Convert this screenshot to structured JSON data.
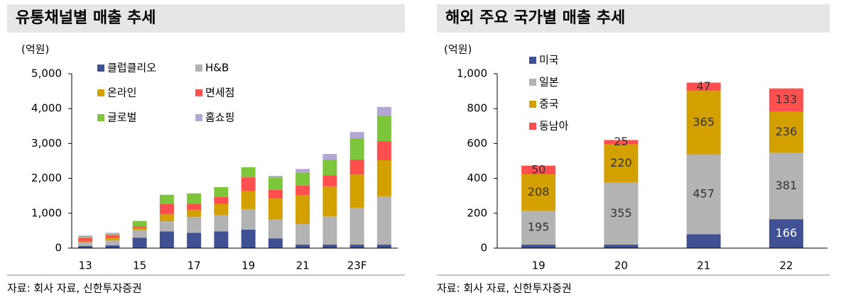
{
  "chart_data": [
    {
      "type": "stacked-bar",
      "title": "유통채널별 매출 추세",
      "unit": "(억원)",
      "source": "자료: 회사 자료, 신한투자증권",
      "categories": [
        "13",
        null,
        "15",
        null,
        "17",
        null,
        "19",
        null,
        "21",
        null,
        "23F",
        null
      ],
      "series": [
        {
          "name": "클럽클리오",
          "color": "#3f5193",
          "values": [
            60,
            80,
            300,
            480,
            440,
            480,
            530,
            280,
            100,
            100,
            100,
            100
          ]
        },
        {
          "name": "H&B",
          "color": "#b3b3b3",
          "values": [
            100,
            150,
            220,
            290,
            450,
            460,
            590,
            540,
            590,
            810,
            1060,
            1380
          ]
        },
        {
          "name": "온라인",
          "color": "#d4a000",
          "values": [
            30,
            60,
            60,
            200,
            200,
            330,
            510,
            600,
            830,
            860,
            950,
            1040
          ]
        },
        {
          "name": "면세점",
          "color": "#ff4f4f",
          "values": [
            100,
            80,
            40,
            290,
            180,
            200,
            400,
            250,
            270,
            320,
            430,
            550
          ]
        },
        {
          "name": "글로벌",
          "color": "#7dc63c",
          "values": [
            30,
            30,
            160,
            270,
            300,
            280,
            290,
            360,
            380,
            450,
            610,
            730
          ]
        },
        {
          "name": "홈쇼핑",
          "color": "#b4a7d6",
          "values": [
            40,
            40,
            0,
            0,
            0,
            0,
            0,
            40,
            100,
            160,
            180,
            250
          ]
        }
      ],
      "ylim": [
        0,
        5000
      ],
      "yticks": [
        0,
        {
          "value": 1000,
          "label": "1,000"
        },
        {
          "value": 2000,
          "label": "2,000"
        },
        {
          "value": 3000,
          "label": "3,000"
        },
        {
          "value": 4000,
          "label": "4,000"
        },
        {
          "value": 5000,
          "label": "5,000"
        }
      ],
      "legend": "top-left"
    },
    {
      "type": "stacked-bar",
      "title": "해외 주요 국가별 매출 추세",
      "unit": "(억원)",
      "source": "자료: 회사 자료, 신한투자증권",
      "categories": [
        "19",
        "20",
        "21",
        "22"
      ],
      "series": [
        {
          "name": "미국",
          "color": "#3f5193",
          "values": [
            20,
            20,
            80,
            166
          ],
          "value_labels": [
            null,
            null,
            null,
            "166"
          ]
        },
        {
          "name": "일본",
          "color": "#b3b3b3",
          "values": [
            195,
            355,
            457,
            381
          ],
          "value_labels": [
            "195",
            "355",
            "457",
            "381"
          ]
        },
        {
          "name": "중국",
          "color": "#d4a000",
          "values": [
            208,
            220,
            365,
            236
          ],
          "value_labels": [
            "208",
            "220",
            "365",
            "236"
          ]
        },
        {
          "name": "동남아",
          "color": "#ff4f4f",
          "values": [
            50,
            25,
            47,
            133
          ],
          "value_labels": [
            "50",
            "25",
            "47",
            "133"
          ]
        }
      ],
      "ylim": [
        0,
        1000
      ],
      "yticks": [
        0,
        200,
        400,
        600,
        800,
        {
          "value": 1000,
          "label": "1,000"
        }
      ],
      "legend": "top-left"
    }
  ]
}
